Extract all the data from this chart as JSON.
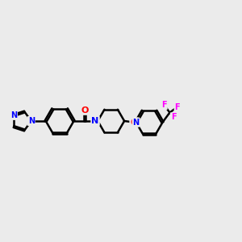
{
  "background_color": "#ebebeb",
  "bond_color": "#000000",
  "bond_width": 1.8,
  "atom_colors": {
    "N": "#0000ff",
    "O": "#ff0000",
    "F": "#ff00ff",
    "C": "#000000"
  },
  "figsize": [
    3.0,
    3.0
  ],
  "dpi": 100
}
